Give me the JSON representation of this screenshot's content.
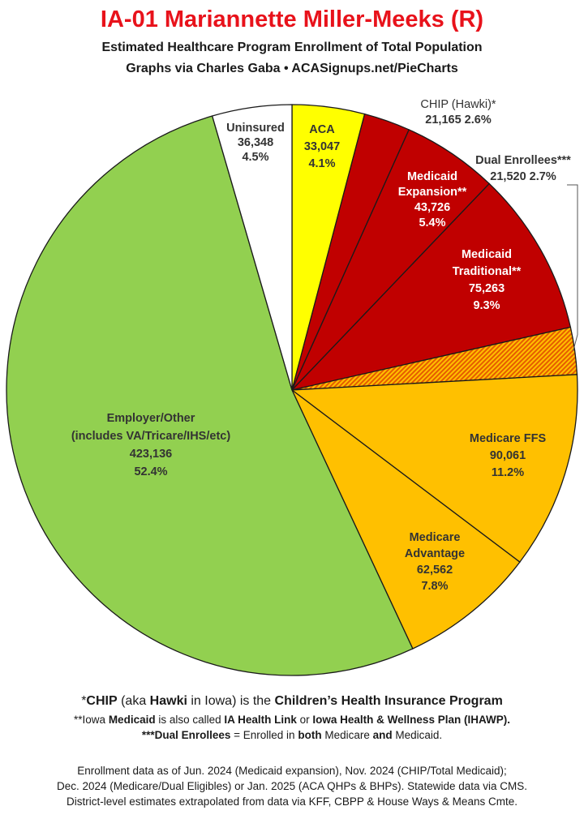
{
  "header": {
    "title": "IA-01 Mariannette Miller-Meeks (R)",
    "subtitle_line1": "Estimated Healthcare Program Enrollment of Total Population",
    "subtitle_line2": "Graphs via Charles Gaba  •  ACASignups.net/PieCharts"
  },
  "colors": {
    "aca": "#ffff00",
    "medicaid": "#c00000",
    "dual": "#e65c00",
    "medicare": "#ffc000",
    "employer": "#92d050",
    "uninsured": "#ffffff",
    "title": "#e8121b"
  },
  "chart_data": {
    "type": "pie",
    "title": "IA-01 Mariannette Miller-Meeks (R)",
    "start": "top, clockwise",
    "slices": [
      {
        "key": "aca",
        "lines": [
          "ACA",
          "33,047",
          "4.1%"
        ],
        "value": 33047,
        "percent": 4.1,
        "color": "#ffff00",
        "label_color": "#333333"
      },
      {
        "key": "chip",
        "lines": [
          "CHIP (Hawki)*",
          "21,165 2.6%"
        ],
        "value": 21165,
        "percent": 2.6,
        "color": "#c00000",
        "label_color": "#333333"
      },
      {
        "key": "medicaid_expansion",
        "lines": [
          "Medicaid",
          "Expansion**",
          "43,726",
          "5.4%"
        ],
        "value": 43726,
        "percent": 5.4,
        "color": "#c00000",
        "label_color": "#ffffff"
      },
      {
        "key": "medicaid_traditional",
        "lines": [
          "Medicaid",
          "Traditional**",
          "75,263",
          "9.3%"
        ],
        "value": 75263,
        "percent": 9.3,
        "color": "#c00000",
        "label_color": "#ffffff"
      },
      {
        "key": "dual",
        "lines": [
          "Dual Enrollees***",
          "21,520 2.7%"
        ],
        "value": 21520,
        "percent": 2.7,
        "color": "#e65c00",
        "label_color": "#333333",
        "pattern": "hatched"
      },
      {
        "key": "medicare_ffs",
        "lines": [
          "Medicare FFS",
          "90,061",
          "11.2%"
        ],
        "value": 90061,
        "percent": 11.2,
        "color": "#ffc000",
        "label_color": "#333333"
      },
      {
        "key": "medicare_advantage",
        "lines": [
          "Medicare",
          "Advantage",
          "62,562",
          "7.8%"
        ],
        "value": 62562,
        "percent": 7.8,
        "color": "#ffc000",
        "label_color": "#333333"
      },
      {
        "key": "employer",
        "lines": [
          "Employer/Other",
          "(includes VA/Tricare/IHS/etc)",
          "423,136",
          "52.4%"
        ],
        "value": 423136,
        "percent": 52.4,
        "color": "#92d050",
        "label_color": "#333333"
      },
      {
        "key": "uninsured",
        "lines": [
          "Uninsured",
          "36,348",
          "4.5%"
        ],
        "value": 36348,
        "percent": 4.5,
        "color": "#ffffff",
        "label_color": "#333333"
      }
    ]
  },
  "footnotes": {
    "chip": [
      "*",
      "CHIP",
      " (aka ",
      "Hawki",
      " in Iowa) is the ",
      "Children’s Health Insurance Program"
    ],
    "medicaid": [
      "**Iowa ",
      "Medicaid",
      " is also called ",
      "IA Health Link",
      " or ",
      "Iowa Health & Wellness Plan (IHAWP)."
    ],
    "dual": [
      "***Dual Enrollees",
      " = Enrolled in ",
      "both",
      " Medicare ",
      "and",
      " Medicaid."
    ]
  },
  "sources": {
    "line1": "Enrollment data as of Jun. 2024 (Medicaid expansion), Nov. 2024 (CHIP/Total Medicaid);",
    "line2": "Dec. 2024 (Medicare/Dual Eligibles) or Jan. 2025 (ACA QHPs & BHPs). Statewide data via CMS.",
    "line3": "District-level estimates extrapolated from data via KFF, CBPP & House Ways & Means Cmte."
  }
}
